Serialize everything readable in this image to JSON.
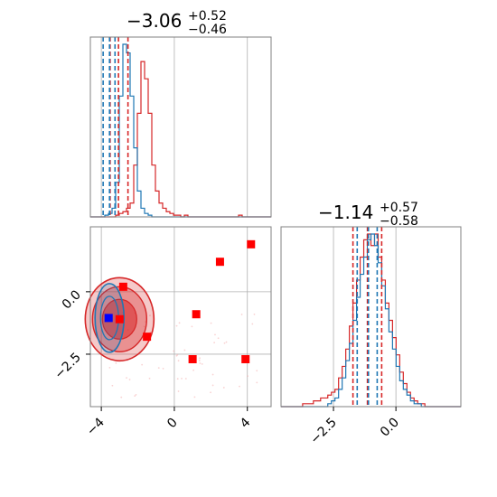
{
  "chart_data": {
    "type": "corner",
    "title": "",
    "colors": {
      "series_a": "#d62728",
      "series_b": "#1f77b4",
      "grid": "#b0b0b0",
      "frame": "#808080",
      "marker_red": "#ff0000",
      "marker_blue": "#0000ff"
    },
    "grid": true,
    "params": [
      {
        "title_value": "−3.06",
        "title_plus": "+0.52",
        "title_minus": "−0.46",
        "range": [
          -4.6,
          5.3
        ],
        "ticks": [
          -4,
          0,
          4
        ],
        "tick_labels": [
          "−4",
          "0",
          "4"
        ]
      },
      {
        "title_value": "−1.14",
        "title_plus": "+0.57",
        "title_minus": "−0.58",
        "range": [
          -4.6,
          2.6
        ],
        "ticks": [
          -2.5,
          0.0
        ],
        "tick_labels": [
          "−2.5",
          "0.0"
        ]
      }
    ],
    "hist_param1": {
      "x_edges": [
        -4.6,
        5.3
      ],
      "series_red": [
        0,
        0,
        0,
        0,
        0,
        0,
        0,
        1,
        2,
        3,
        5,
        8,
        30,
        60,
        90,
        80,
        60,
        30,
        15,
        8,
        5,
        3,
        2,
        1,
        1,
        0,
        1,
        0,
        0,
        0,
        0,
        0,
        0,
        0,
        0,
        0,
        0,
        0,
        0,
        0,
        0,
        1,
        0,
        0,
        0,
        0,
        0,
        0,
        0,
        0
      ],
      "series_blue": [
        0,
        0,
        0,
        0,
        1,
        2,
        5,
        20,
        70,
        100,
        95,
        70,
        40,
        15,
        5,
        2,
        1,
        0,
        0,
        0,
        0,
        0,
        0,
        0,
        0,
        0,
        0,
        0,
        0,
        0,
        0,
        0,
        0,
        0,
        0,
        0,
        0,
        0,
        0,
        0,
        0,
        0,
        0,
        0,
        0,
        0,
        0,
        0,
        0,
        0
      ],
      "quantiles_red": [
        -3.52,
        -3.06,
        -2.54
      ],
      "quantiles_blue": [
        -3.9,
        -3.55,
        -3.25
      ]
    },
    "hist_param2": {
      "x_edges": [
        -4.6,
        2.6
      ],
      "series_red": [
        0,
        0,
        0,
        0,
        0,
        0,
        1,
        1,
        1,
        2,
        2,
        3,
        3,
        4,
        5,
        6,
        10,
        14,
        20,
        28,
        36,
        44,
        52,
        58,
        60,
        56,
        60,
        52,
        44,
        36,
        30,
        24,
        18,
        12,
        8,
        5,
        3,
        2,
        1,
        1,
        0,
        0,
        0,
        0,
        0,
        0,
        0,
        0,
        0,
        0
      ],
      "series_blue": [
        0,
        0,
        0,
        0,
        0,
        0,
        0,
        0,
        0,
        0,
        0,
        0,
        0,
        1,
        2,
        3,
        6,
        10,
        16,
        22,
        30,
        38,
        46,
        52,
        58,
        60,
        56,
        50,
        42,
        34,
        26,
        20,
        14,
        9,
        6,
        4,
        2,
        1,
        1,
        0,
        0,
        0,
        0,
        0,
        0,
        0,
        0,
        0,
        0,
        0
      ],
      "quantiles_red": [
        -1.72,
        -1.14,
        -0.57
      ],
      "quantiles_blue": [
        -1.55,
        -1.1,
        -0.75
      ]
    },
    "scatter_points": [
      {
        "x": 4.2,
        "y": 1.9,
        "color": "red"
      },
      {
        "x": 2.5,
        "y": 1.2,
        "color": "red"
      },
      {
        "x": -2.8,
        "y": 0.2,
        "color": "red"
      },
      {
        "x": 1.2,
        "y": -0.9,
        "color": "red"
      },
      {
        "x": -3.0,
        "y": -1.1,
        "color": "red"
      },
      {
        "x": -1.5,
        "y": -1.8,
        "color": "red"
      },
      {
        "x": 1.0,
        "y": -2.7,
        "color": "red"
      },
      {
        "x": 3.9,
        "y": -2.7,
        "color": "red"
      },
      {
        "x": -3.6,
        "y": -1.05,
        "color": "blue"
      }
    ]
  }
}
